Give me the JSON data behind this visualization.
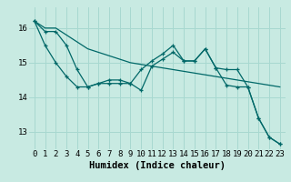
{
  "xlabel": "Humidex (Indice chaleur)",
  "background_color": "#c8eae2",
  "grid_color": "#a8d8d0",
  "line_color": "#006868",
  "xlim": [
    -0.5,
    23.5
  ],
  "ylim": [
    12.5,
    16.6
  ],
  "yticks": [
    13,
    14,
    15,
    16
  ],
  "xticks": [
    0,
    1,
    2,
    3,
    4,
    5,
    6,
    7,
    8,
    9,
    10,
    11,
    12,
    13,
    14,
    15,
    16,
    17,
    18,
    19,
    20,
    21,
    22,
    23
  ],
  "series1": [
    16.2,
    15.9,
    15.9,
    15.5,
    14.8,
    14.3,
    14.4,
    14.4,
    14.4,
    14.4,
    14.2,
    14.9,
    15.1,
    15.3,
    15.05,
    15.05,
    15.4,
    14.85,
    14.35,
    14.3,
    14.3,
    13.4,
    12.85,
    12.65
  ],
  "series2": [
    16.2,
    16.0,
    16.0,
    15.8,
    15.6,
    15.4,
    15.3,
    15.2,
    15.1,
    15.0,
    14.95,
    14.9,
    14.85,
    14.8,
    14.75,
    14.7,
    14.65,
    14.6,
    14.55,
    14.5,
    14.45,
    14.4,
    14.35,
    14.3
  ],
  "series3": [
    16.2,
    15.5,
    15.0,
    14.6,
    14.3,
    14.3,
    14.4,
    14.5,
    14.5,
    14.4,
    14.8,
    15.05,
    15.25,
    15.5,
    15.05,
    15.05,
    15.4,
    14.85,
    14.8,
    14.8,
    14.3,
    13.4,
    12.85,
    12.65
  ],
  "fontsize_xlabel": 7.5,
  "tick_fontsize": 6.5
}
